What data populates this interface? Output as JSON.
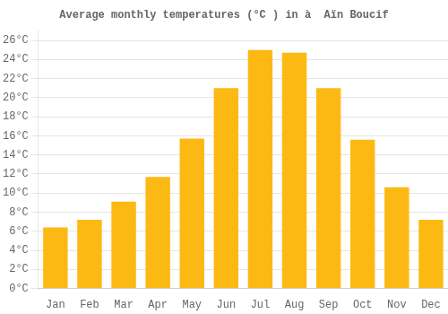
{
  "chart_data": {
    "type": "bar",
    "title": "Average monthly temperatures (°C ) in à  Aïn Boucif",
    "categories": [
      "Jan",
      "Feb",
      "Mar",
      "Apr",
      "May",
      "Jun",
      "Jul",
      "Aug",
      "Sep",
      "Oct",
      "Nov",
      "Dec"
    ],
    "values": [
      6.4,
      7.2,
      9.1,
      11.7,
      15.7,
      21.0,
      25.0,
      24.7,
      21.0,
      15.6,
      10.6,
      7.2
    ],
    "color": "#FDB913",
    "ylim": [
      0,
      27
    ],
    "yticks": [
      {
        "value": 0,
        "label": "0°C"
      },
      {
        "value": 2,
        "label": "2°C"
      },
      {
        "value": 4,
        "label": "4°C"
      },
      {
        "value": 6,
        "label": "6°C"
      },
      {
        "value": 8,
        "label": "8°C"
      },
      {
        "value": 10,
        "label": "10°C"
      },
      {
        "value": 12,
        "label": "12°C"
      },
      {
        "value": 14,
        "label": "14°C"
      },
      {
        "value": 16,
        "label": "16°C"
      },
      {
        "value": 18,
        "label": "18°C"
      },
      {
        "value": 20,
        "label": "20°C"
      },
      {
        "value": 22,
        "label": "22°C"
      },
      {
        "value": 24,
        "label": "24°C"
      },
      {
        "value": 26,
        "label": "26°C"
      }
    ],
    "grid": true
  }
}
